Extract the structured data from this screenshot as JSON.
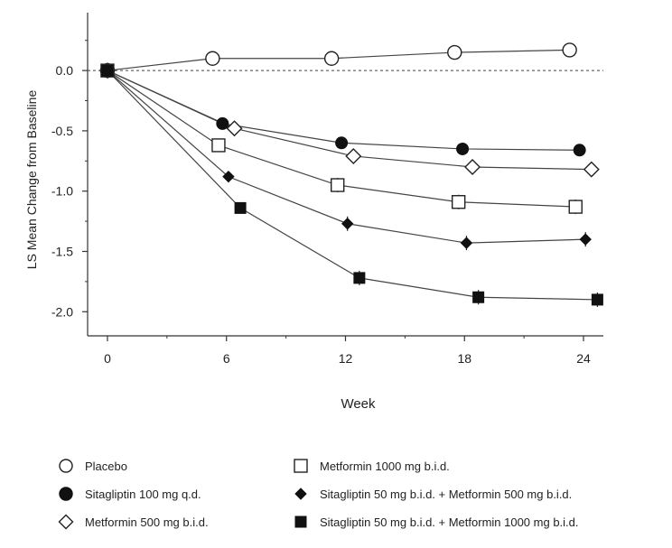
{
  "chart_data": {
    "type": "line",
    "xlabel": "Week",
    "ylabel": "LS Mean Change from Baseline",
    "xticks": [
      0,
      6,
      12,
      18,
      24
    ],
    "yticks": [
      0.0,
      -0.5,
      -1.0,
      -1.5,
      -2.0
    ],
    "ytick_labels": [
      "0.0",
      "-0.5",
      "-1.0",
      "-1.5",
      "-2.0"
    ],
    "xlim": [
      -1,
      25
    ],
    "ylim": [
      -2.2,
      0.48
    ],
    "reference_line": 0.0,
    "legend_placement": "bottom",
    "series": [
      {
        "name": "Placebo",
        "marker": "open-circle",
        "x": [
          0,
          5.3,
          11.3,
          17.5,
          23.3
        ],
        "y": [
          0.0,
          0.1,
          0.1,
          0.15,
          0.17
        ],
        "err": [
          0.0,
          0.03,
          0.05,
          0.05,
          0.05
        ]
      },
      {
        "name": "Sitagliptin 100 mg q.d.",
        "marker": "filled-circle",
        "x": [
          0,
          5.8,
          11.8,
          17.9,
          23.8
        ],
        "y": [
          0.0,
          -0.44,
          -0.6,
          -0.65,
          -0.66
        ],
        "err": [
          0.0,
          0.03,
          0.05,
          0.05,
          0.05
        ]
      },
      {
        "name": "Metformin 500 mg b.i.d.",
        "marker": "open-diamond",
        "x": [
          0,
          6.4,
          12.4,
          18.4,
          24.4
        ],
        "y": [
          0.0,
          -0.48,
          -0.71,
          -0.8,
          -0.82
        ],
        "err": [
          0.0,
          0.03,
          0.05,
          0.05,
          0.05
        ]
      },
      {
        "name": "Metformin 1000 mg b.i.d.",
        "marker": "open-square",
        "x": [
          0,
          5.6,
          11.6,
          17.7,
          23.6
        ],
        "y": [
          0.0,
          -0.62,
          -0.95,
          -1.09,
          -1.13
        ],
        "err": [
          0.0,
          0.03,
          0.06,
          0.06,
          0.06
        ]
      },
      {
        "name": "Sitagliptin 50 mg b.i.d. + Metformin 500 mg b.i.d.",
        "marker": "filled-diamond",
        "x": [
          0,
          6.1,
          12.1,
          18.1,
          24.1
        ],
        "y": [
          0.0,
          -0.88,
          -1.27,
          -1.43,
          -1.4
        ],
        "err": [
          0.0,
          0.03,
          0.06,
          0.06,
          0.06
        ]
      },
      {
        "name": "Sitagliptin 50 mg b.i.d. + Metformin 1000 mg b.i.d.",
        "marker": "filled-square",
        "x": [
          0,
          6.7,
          12.7,
          18.7,
          24.7
        ],
        "y": [
          0.0,
          -1.14,
          -1.72,
          -1.88,
          -1.9
        ],
        "err": [
          0.0,
          0.03,
          0.06,
          0.06,
          0.06
        ]
      }
    ]
  }
}
